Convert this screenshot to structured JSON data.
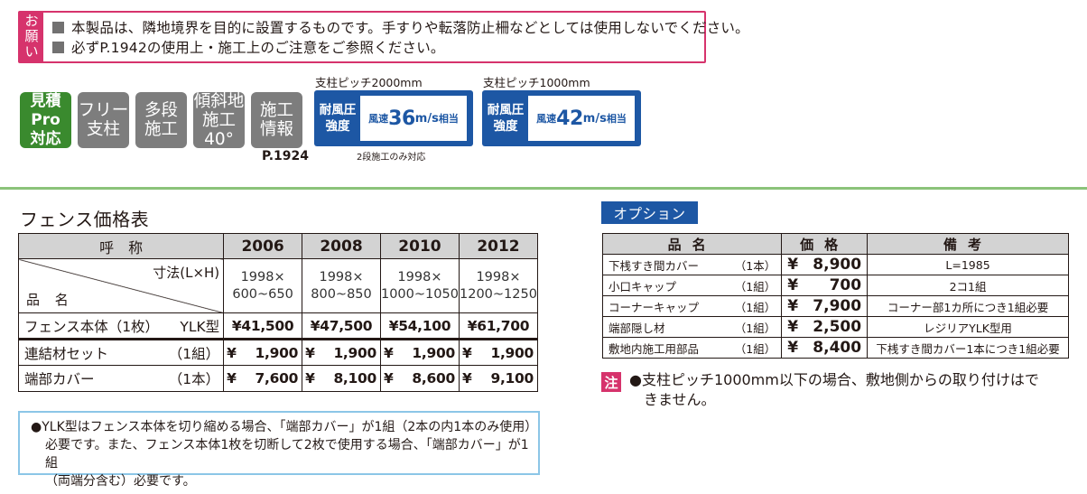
{
  "notice": {
    "tag": [
      "お",
      "願",
      "い"
    ],
    "lines": [
      "本製品は、隣地境界を目的に設置するものです。手すりや転落防止柵などとしては使用しないでください。",
      "必ずP.1942の使用上・施工上のご注意をご参照ください。"
    ]
  },
  "badges": [
    {
      "line1": "見積Pro",
      "line2": "対応",
      "color": "#3a8a2e"
    },
    {
      "line1": "フリー",
      "line2": "支柱",
      "color": "#7d7d7d"
    },
    {
      "line1": "多段",
      "line2": "施工",
      "color": "#7d7d7d"
    },
    {
      "line1": "傾斜地",
      "line2": "施工40°",
      "color": "#7d7d7d"
    },
    {
      "line1": "施工",
      "line2": "情報",
      "color": "#7d7d7d"
    }
  ],
  "page_ref": "P.1924",
  "wind": [
    {
      "caption": "支柱ピッチ2000mm",
      "label1": "耐風圧",
      "label2": "強度",
      "prefix": "風速",
      "speed": "36",
      "unit": "m/s",
      "suffix": "相当",
      "note": "2段施工のみ対応"
    },
    {
      "caption": "支柱ピッチ1000mm",
      "label1": "耐風圧",
      "label2": "強度",
      "prefix": "風速",
      "speed": "42",
      "unit": "m/s",
      "suffix": "相当",
      "note": ""
    }
  ],
  "fence_table": {
    "title": "フェンス価格表",
    "header_label": "呼　称",
    "size_label": "寸法(L×H)",
    "name_label": "品 名",
    "years": [
      "2006",
      "2008",
      "2010",
      "2012"
    ],
    "sizes": [
      [
        "1998×",
        "600~650"
      ],
      [
        "1998×",
        "800~850"
      ],
      [
        "1998×",
        "1000~1050"
      ],
      [
        "1998×",
        "1200~1250"
      ]
    ],
    "rows": [
      {
        "name": "フェンス本体（1枚）",
        "unit": "YLK型",
        "prices": [
          "¥41,500",
          "¥47,500",
          "¥54,100",
          "¥61,700"
        ]
      },
      {
        "name": "連結材セット",
        "unit": "（1組）",
        "prices": [
          "1,900",
          "1,900",
          "1,900",
          "1,900"
        ]
      },
      {
        "name": "端部カバー",
        "unit": "（1本）",
        "prices": [
          "7,600",
          "8,100",
          "8,600",
          "9,100"
        ]
      }
    ],
    "yen": "¥"
  },
  "options": {
    "title": "オプション",
    "headers": [
      "品名",
      "価格",
      "備考"
    ],
    "rows": [
      {
        "name": "下桟すき間カバー",
        "unit": "（1本）",
        "price": "8,900",
        "remark": "L=1985"
      },
      {
        "name": "小口キャップ",
        "unit": "（1組）",
        "price": "700",
        "remark": "2コ1組"
      },
      {
        "name": "コーナーキャップ",
        "unit": "（1組）",
        "price": "7,900",
        "remark": "コーナー部1カ所につき1組必要"
      },
      {
        "name": "端部隠し材",
        "unit": "（1組）",
        "price": "2,500",
        "remark": "レジリアYLK型用"
      },
      {
        "name": "敷地内施工用部品",
        "unit": "（1組）",
        "price": "8,400",
        "remark": "下桟すき間カバー1本につき1組必要"
      }
    ],
    "yen": "¥"
  },
  "footnote": {
    "lines": [
      "●YLK型はフェンス本体を切り縮める場合、「端部カバー」が1組（2本の内1本のみ使用）",
      "必要です。また、フェンス本体1枚を切断して2枚で使用する場合、「端部カバー」が1組",
      "（両端分含む）必要です。"
    ]
  },
  "caution": {
    "tag": "注",
    "lines": [
      "●支柱ピッチ1000mm以下の場合、敷地側からの取り付けはで",
      "きません。"
    ]
  }
}
